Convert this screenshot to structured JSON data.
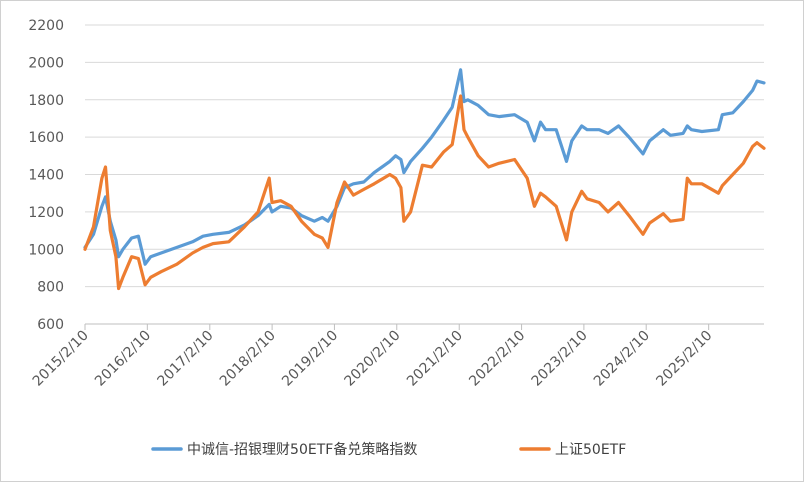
{
  "chart_data": {
    "type": "line",
    "title": "",
    "xlabel": "",
    "ylabel": "",
    "ylim": [
      600,
      2200
    ],
    "yticks": [
      600,
      800,
      1000,
      1200,
      1400,
      1600,
      1800,
      2000,
      2200
    ],
    "xticks": [
      "2015/2/10",
      "2016/2/10",
      "2017/2/10",
      "2018/2/10",
      "2019/2/10",
      "2020/2/10",
      "2021/2/10",
      "2022/2/10",
      "2023/2/10",
      "2024/2/10",
      "2025/2/10"
    ],
    "xlim": [
      "2015/2/10",
      "2025/12/31"
    ],
    "grid": "horizontal",
    "legend_position": "bottom",
    "series": [
      {
        "name": "中诚信-招银理财50ETF备兑策略指数",
        "color": "#5B9BD5",
        "x": [
          "2015/2/10",
          "2015/4/1",
          "2015/5/20",
          "2015/6/10",
          "2015/7/8",
          "2015/8/10",
          "2015/8/26",
          "2015/9/20",
          "2015/11/10",
          "2015/12/20",
          "2016/1/28",
          "2016/3/1",
          "2016/5/1",
          "2016/8/1",
          "2016/11/1",
          "2017/1/1",
          "2017/3/1",
          "2017/6/1",
          "2017/9/1",
          "2017/11/20",
          "2018/1/24",
          "2018/2/9",
          "2018/4/1",
          "2018/6/1",
          "2018/8/1",
          "2018/10/15",
          "2018/12/1",
          "2019/1/3",
          "2019/2/25",
          "2019/4/10",
          "2019/6/1",
          "2019/8/1",
          "2019/10/1",
          "2019/12/31",
          "2020/2/3",
          "2020/3/5",
          "2020/3/23",
          "2020/5/1",
          "2020/7/9",
          "2020/9/1",
          "2020/11/10",
          "2020/12/31",
          "2021/2/18",
          "2021/3/10",
          "2021/4/1",
          "2021/6/1",
          "2021/8/1",
          "2021/10/1",
          "2021/12/31",
          "2022/3/15",
          "2022/4/26",
          "2022/6/1",
          "2022/7/1",
          "2022/9/1",
          "2022/10/31",
          "2022/12/1",
          "2023/1/28",
          "2023/3/1",
          "2023/5/10",
          "2023/7/1",
          "2023/9/1",
          "2023/11/1",
          "2024/1/22",
          "2024/3/1",
          "2024/5/20",
          "2024/7/1",
          "2024/9/13",
          "2024/10/8",
          "2024/11/1",
          "2025/1/1",
          "2025/4/8",
          "2025/5/1",
          "2025/7/1",
          "2025/9/1",
          "2025/10/25",
          "2025/11/20",
          "2025/12/31"
        ],
        "values": [
          1010,
          1080,
          1230,
          1280,
          1150,
          1050,
          960,
          1000,
          1060,
          1070,
          920,
          960,
          980,
          1010,
          1040,
          1070,
          1080,
          1090,
          1130,
          1180,
          1240,
          1200,
          1230,
          1220,
          1180,
          1150,
          1170,
          1150,
          1230,
          1330,
          1350,
          1360,
          1410,
          1470,
          1500,
          1480,
          1410,
          1470,
          1540,
          1600,
          1690,
          1760,
          1960,
          1790,
          1800,
          1770,
          1720,
          1710,
          1720,
          1680,
          1580,
          1680,
          1640,
          1640,
          1470,
          1580,
          1660,
          1640,
          1640,
          1620,
          1660,
          1600,
          1510,
          1580,
          1640,
          1610,
          1620,
          1660,
          1640,
          1630,
          1640,
          1720,
          1730,
          1790,
          1850,
          1900,
          1890
        ]
      },
      {
        "name": "上证50ETF",
        "color": "#ED7D31",
        "x": [
          "2015/2/10",
          "2015/4/1",
          "2015/5/20",
          "2015/6/10",
          "2015/7/8",
          "2015/8/10",
          "2015/8/26",
          "2015/9/20",
          "2015/11/10",
          "2015/12/20",
          "2016/1/28",
          "2016/3/1",
          "2016/5/1",
          "2016/8/1",
          "2016/11/1",
          "2017/1/1",
          "2017/3/1",
          "2017/6/1",
          "2017/9/1",
          "2017/11/20",
          "2018/1/24",
          "2018/2/9",
          "2018/4/1",
          "2018/6/1",
          "2018/8/1",
          "2018/10/15",
          "2018/12/1",
          "2019/1/3",
          "2019/2/25",
          "2019/4/10",
          "2019/6/1",
          "2019/8/1",
          "2019/10/1",
          "2019/12/31",
          "2020/2/3",
          "2020/3/5",
          "2020/3/23",
          "2020/5/1",
          "2020/7/9",
          "2020/9/1",
          "2020/11/10",
          "2020/12/31",
          "2021/2/18",
          "2021/3/10",
          "2021/4/1",
          "2021/6/1",
          "2021/8/1",
          "2021/10/1",
          "2021/12/31",
          "2022/3/15",
          "2022/4/26",
          "2022/6/1",
          "2022/7/1",
          "2022/9/1",
          "2022/10/31",
          "2022/12/1",
          "2023/1/28",
          "2023/3/1",
          "2023/5/10",
          "2023/7/1",
          "2023/9/1",
          "2023/11/1",
          "2024/1/22",
          "2024/3/1",
          "2024/5/20",
          "2024/7/1",
          "2024/9/13",
          "2024/10/8",
          "2024/11/1",
          "2025/1/1",
          "2025/4/8",
          "2025/5/1",
          "2025/7/1",
          "2025/9/1",
          "2025/10/25",
          "2025/11/20",
          "2025/12/31"
        ],
        "values": [
          1000,
          1120,
          1380,
          1440,
          1100,
          960,
          790,
          850,
          960,
          950,
          810,
          850,
          880,
          920,
          980,
          1010,
          1030,
          1040,
          1120,
          1200,
          1380,
          1250,
          1260,
          1230,
          1150,
          1080,
          1060,
          1010,
          1250,
          1360,
          1290,
          1320,
          1350,
          1400,
          1380,
          1330,
          1150,
          1200,
          1450,
          1440,
          1520,
          1560,
          1820,
          1640,
          1600,
          1500,
          1440,
          1460,
          1480,
          1380,
          1230,
          1300,
          1280,
          1230,
          1050,
          1200,
          1310,
          1270,
          1250,
          1200,
          1250,
          1180,
          1080,
          1140,
          1190,
          1150,
          1160,
          1380,
          1350,
          1350,
          1300,
          1340,
          1400,
          1460,
          1550,
          1570,
          1540
        ]
      }
    ]
  }
}
